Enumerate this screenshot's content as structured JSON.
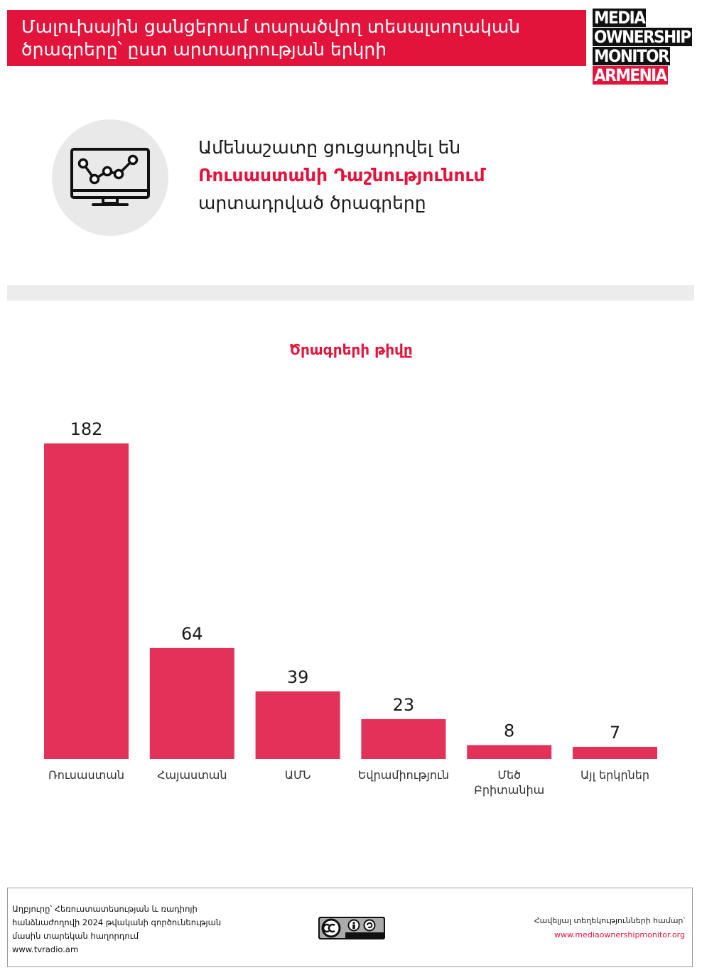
{
  "header": {
    "title_line1": "Մալուխային ցանցերում տարածվող տեսալսողական",
    "title_line2": "ծրագրերը՝ ըստ արտադրության երկրի"
  },
  "logo": {
    "line1": "MEDIA",
    "line2": "OWNERSHIP",
    "line3": "MONITOR",
    "line4": "ARMENIA"
  },
  "highlight": {
    "icon": "monitor-chart-icon",
    "line1": "Ամենաշատը ցուցադրվել են",
    "line2": "Ռուսաստանի Դաշնությունում",
    "line3": "արտադրված ծրագրերը"
  },
  "chart_data": {
    "type": "bar",
    "title": "Ծրագրերի թիվը",
    "categories": [
      "Ռուսաստան",
      "Հայաստան",
      "ԱՄՆ",
      "Եվրամիություն",
      "Մեծ Բրիտանիա",
      "Այլ երկրներ"
    ],
    "values": [
      182,
      64,
      39,
      23,
      8,
      7
    ],
    "ylim": [
      0,
      182
    ],
    "grid": false,
    "bar_color": "#e3325a"
  },
  "footer": {
    "source_line1": "Աղբյուրը՝ Հեռուստատեսության և ռադիոյի",
    "source_line2": "հանձնաժողովի 2024 թվականի գործունեության",
    "source_line3": "մասին տարեկան հաղորդում",
    "source_url": "www.tvradio.am",
    "license_icon": "cc-by-sa-icon",
    "more_label": "Հավելյալ տեղեկությունների համար՝",
    "more_url": "www.mediaownershipmonitor.org"
  },
  "colors": {
    "accent": "#e3143c",
    "bar": "#e3325a",
    "divider": "#ececec"
  }
}
